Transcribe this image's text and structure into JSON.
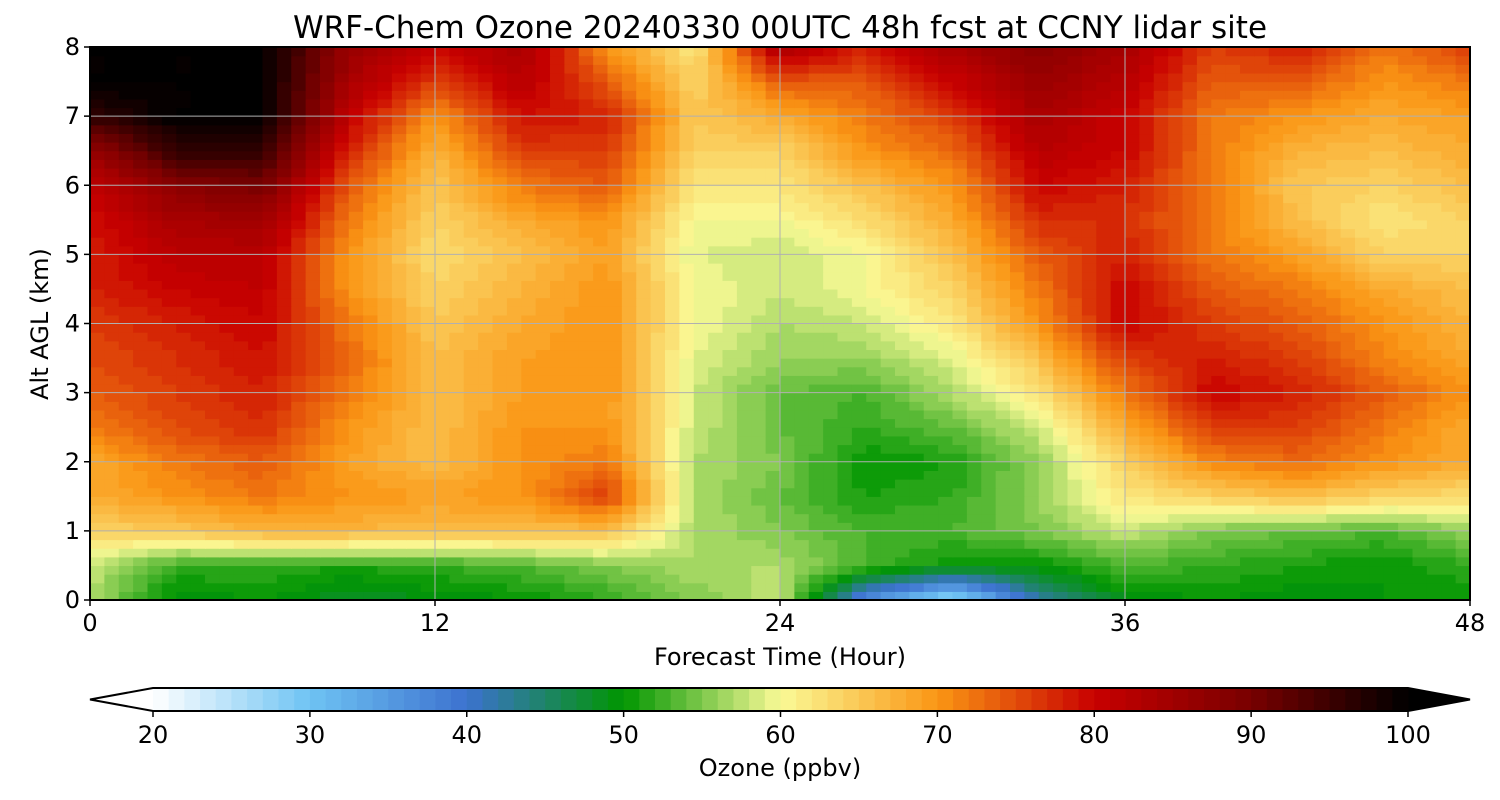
{
  "chart_data": {
    "type": "heatmap",
    "title": "WRF-Chem Ozone  20240330 00UTC 48h fcst at CCNY lidar site",
    "xlabel": "Forecast Time (Hour)",
    "ylabel": "Alt AGL (km)",
    "xlim": [
      0,
      48
    ],
    "ylim": [
      0,
      8
    ],
    "x_ticks": [
      0,
      12,
      24,
      36,
      48
    ],
    "y_ticks": [
      0,
      1,
      2,
      3,
      4,
      5,
      6,
      7,
      8
    ],
    "grid": true,
    "colorbar": {
      "label": "Ozone  (ppbv)",
      "range": [
        20,
        100
      ],
      "ticks": [
        20,
        30,
        40,
        50,
        60,
        70,
        80,
        90,
        100
      ],
      "extend": "both",
      "levels": 80,
      "colors": [
        {
          "v": 20,
          "c": "#ffffff"
        },
        {
          "v": 30,
          "c": "#6ec3f3"
        },
        {
          "v": 40,
          "c": "#3c72cf"
        },
        {
          "v": 50,
          "c": "#009600"
        },
        {
          "v": 54,
          "c": "#64be3c"
        },
        {
          "v": 60,
          "c": "#fafa96"
        },
        {
          "v": 65,
          "c": "#fac855"
        },
        {
          "v": 70,
          "c": "#fa9614"
        },
        {
          "v": 80,
          "c": "#c80000"
        },
        {
          "v": 90,
          "c": "#780000"
        },
        {
          "v": 100,
          "c": "#000000"
        }
      ]
    },
    "heights_km": [
      0,
      0.5,
      1,
      1.5,
      2,
      2.5,
      3,
      3.5,
      4,
      4.5,
      5,
      5.5,
      6,
      6.5,
      7,
      7.5,
      8
    ],
    "hours": [
      0,
      3,
      6,
      9,
      12,
      15,
      18,
      21,
      24,
      27,
      30,
      33,
      36,
      39,
      42,
      45,
      48
    ],
    "ozone_ppbv": [
      [
        57,
        49,
        50,
        48,
        49,
        50,
        52,
        55,
        58,
        36,
        26,
        42,
        49,
        50,
        49,
        50,
        50
      ],
      [
        58,
        52,
        52,
        51,
        52,
        53,
        55,
        57,
        57,
        53,
        50,
        50,
        53,
        52,
        51,
        50,
        52
      ],
      [
        64,
        65,
        67,
        67,
        66,
        66,
        66,
        57,
        55,
        53,
        53,
        55,
        58,
        55,
        54,
        53,
        56
      ],
      [
        68,
        70,
        72,
        70,
        69,
        70,
        76,
        57,
        54,
        51,
        52,
        56,
        62,
        64,
        66,
        64,
        63
      ],
      [
        68,
        72,
        74,
        69,
        66,
        70,
        72,
        57,
        55,
        50,
        51,
        56,
        64,
        71,
        73,
        70,
        68
      ],
      [
        72,
        75,
        77,
        70,
        66,
        70,
        70,
        58,
        54,
        52,
        54,
        58,
        68,
        76,
        76,
        72,
        68
      ],
      [
        74,
        76,
        78,
        72,
        66,
        69,
        70,
        58,
        54,
        53,
        57,
        62,
        72,
        80,
        78,
        74,
        70
      ],
      [
        75,
        77,
        79,
        73,
        66,
        69,
        70,
        59,
        56,
        56,
        59,
        66,
        76,
        78,
        76,
        71,
        68
      ],
      [
        76,
        78,
        80,
        72,
        65,
        68,
        70,
        60,
        57,
        58,
        62,
        70,
        80,
        76,
        74,
        70,
        67
      ],
      [
        78,
        80,
        81,
        70,
        64,
        67,
        70,
        60,
        58,
        60,
        64,
        72,
        80,
        74,
        72,
        68,
        66
      ],
      [
        78,
        82,
        82,
        70,
        63,
        66,
        69,
        59,
        58,
        60,
        66,
        74,
        78,
        72,
        69,
        64,
        64
      ],
      [
        79,
        84,
        85,
        72,
        64,
        68,
        70,
        60,
        60,
        63,
        68,
        77,
        77,
        72,
        66,
        62,
        64
      ],
      [
        81,
        88,
        90,
        74,
        65,
        72,
        74,
        62,
        62,
        66,
        70,
        80,
        78,
        72,
        65,
        64,
        66
      ],
      [
        86,
        96,
        96,
        78,
        67,
        76,
        76,
        64,
        64,
        70,
        73,
        82,
        80,
        72,
        67,
        66,
        68
      ],
      [
        96,
        100,
        100,
        81,
        70,
        79,
        78,
        65,
        68,
        72,
        76,
        84,
        80,
        72,
        70,
        68,
        69
      ],
      [
        100,
        100,
        100,
        84,
        76,
        82,
        74,
        64,
        74,
        74,
        80,
        86,
        82,
        74,
        74,
        70,
        72
      ],
      [
        100,
        100,
        100,
        86,
        80,
        84,
        70,
        62,
        84,
        78,
        84,
        88,
        84,
        76,
        78,
        72,
        76
      ]
    ]
  }
}
